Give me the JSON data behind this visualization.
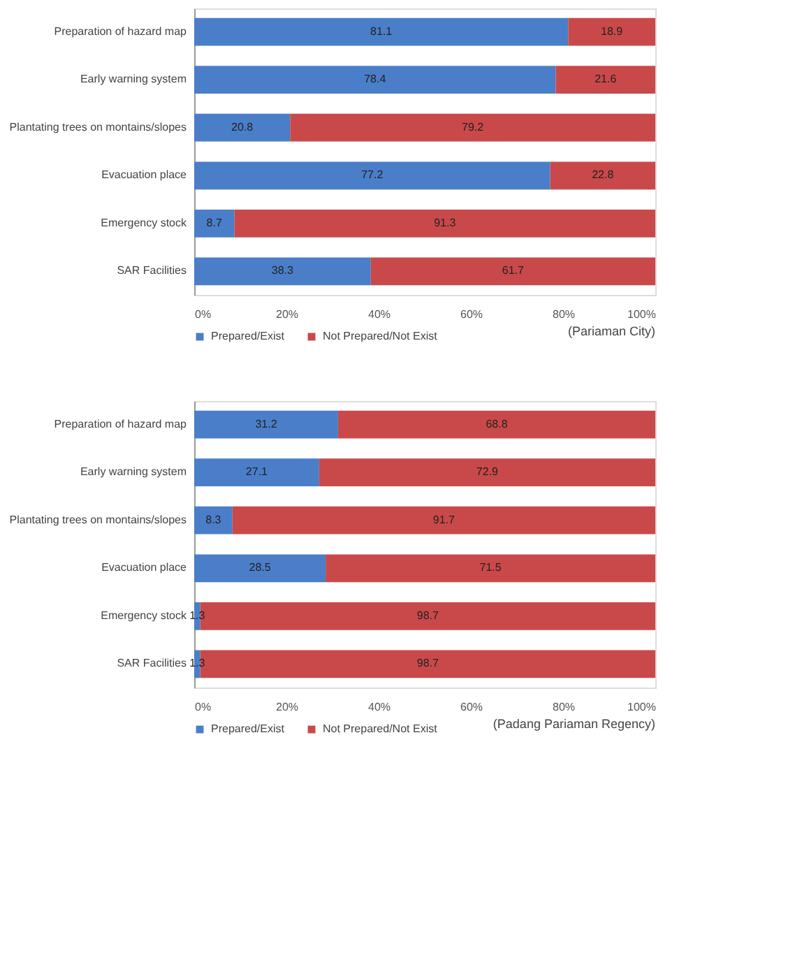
{
  "chart_data": [
    {
      "type": "bar",
      "orientation": "horizontal",
      "stacked": true,
      "data_labels": true,
      "legend": "bottom",
      "grid": false,
      "categories": [
        "Preparation of hazard map",
        "Early warning system",
        "Plantating trees on montains/slopes",
        "Evacuation  place",
        "Emergency stock",
        "SAR Facilities"
      ],
      "series": [
        {
          "name": "Prepared/Exist",
          "color": "#4a7ec8",
          "values": [
            81.1,
            78.4,
            20.8,
            77.2,
            8.7,
            38.3
          ]
        },
        {
          "name": "Not Prepared/Not Exist",
          "color": "#c9494a",
          "values": [
            18.9,
            21.6,
            79.2,
            22.8,
            91.3,
            61.7
          ]
        }
      ],
      "xlim": [
        0,
        100
      ],
      "xticks": [
        {
          "value": 0,
          "label": "0%"
        },
        {
          "value": 20,
          "label": "20%"
        },
        {
          "value": 40,
          "label": "40%"
        },
        {
          "value": 60,
          "label": "60%"
        },
        {
          "value": 80,
          "label": "80%"
        },
        {
          "value": 100,
          "label": "100%"
        }
      ],
      "annotations": [
        "(Pariaman City)"
      ]
    },
    {
      "type": "bar",
      "orientation": "horizontal",
      "stacked": true,
      "data_labels": true,
      "legend": "bottom",
      "grid": false,
      "categories": [
        "Preparation of hazard map",
        "Early warning system",
        "Plantating trees on montains/slopes",
        "Evacuation  place",
        "Emergency stock",
        "SAR Facilities"
      ],
      "series": [
        {
          "name": "Prepared/Exist",
          "color": "#4a7ec8",
          "values": [
            31.2,
            27.1,
            8.3,
            28.5,
            1.3,
            1.3
          ]
        },
        {
          "name": "Not Prepared/Not Exist",
          "color": "#c9494a",
          "values": [
            68.8,
            72.9,
            91.7,
            71.5,
            98.7,
            98.7
          ]
        }
      ],
      "xlim": [
        0,
        100
      ],
      "xticks": [
        {
          "value": 0,
          "label": "0%"
        },
        {
          "value": 20,
          "label": "20%"
        },
        {
          "value": 40,
          "label": "40%"
        },
        {
          "value": 60,
          "label": "60%"
        },
        {
          "value": 80,
          "label": "80%"
        },
        {
          "value": 100,
          "label": "100%"
        }
      ],
      "annotations": [
        "(Padang Pariaman Regency)"
      ]
    }
  ]
}
